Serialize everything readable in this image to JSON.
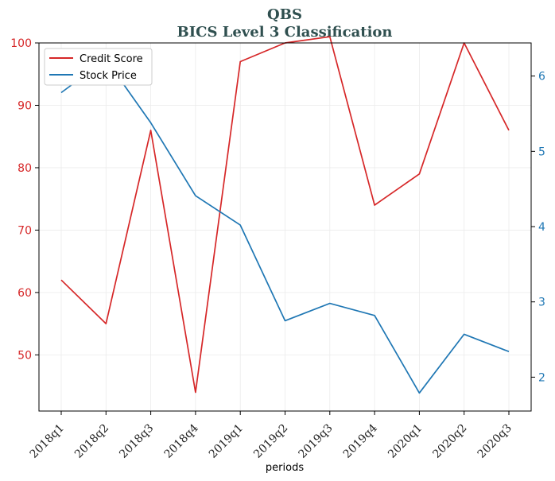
{
  "chart_data": {
    "type": "line",
    "title": "QBS",
    "subtitle": "BICS Level 3 Classification",
    "xlabel": "periods",
    "categories": [
      "2018q1",
      "2018q2",
      "2018q3",
      "2018q4",
      "2019q1",
      "2019q2",
      "2019q3",
      "2019q4",
      "2020q1",
      "2020q2",
      "2020q3"
    ],
    "series": [
      {
        "name": "Credit Score",
        "axis": "left",
        "color": "#d62728",
        "values": [
          62,
          55,
          86,
          44,
          97,
          100,
          101,
          74,
          79,
          100,
          86
        ]
      },
      {
        "name": "Stock Price",
        "axis": "right",
        "color": "#1f77b4",
        "values": [
          5.78,
          6.22,
          5.38,
          4.41,
          4.02,
          2.75,
          2.98,
          2.82,
          1.79,
          2.57,
          2.34
        ]
      }
    ],
    "y_left": {
      "ylim": [
        41,
        100
      ],
      "ticks": [
        50,
        60,
        70,
        80,
        90,
        100
      ]
    },
    "y_right": {
      "ylim": [
        1.55,
        6.44
      ],
      "ticks": [
        2,
        3,
        4,
        5,
        6
      ]
    },
    "grid": true,
    "legend": "top-left"
  }
}
